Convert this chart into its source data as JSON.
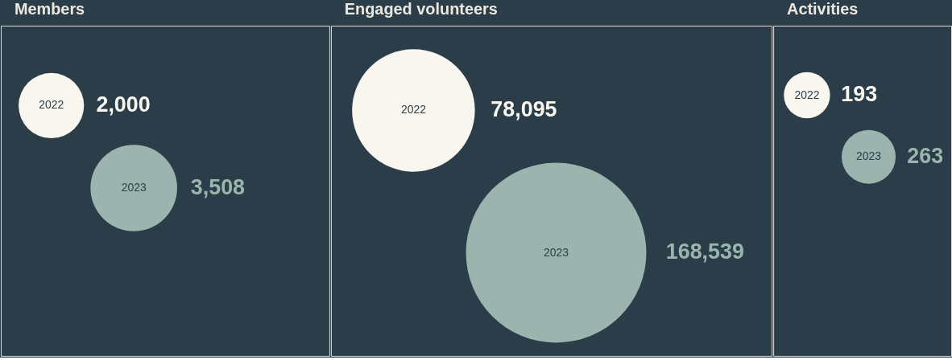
{
  "chart_data": [
    {
      "type": "other",
      "title": "Members",
      "categories": [
        "2022",
        "2023"
      ],
      "values": [
        2000,
        3508
      ],
      "value_labels": [
        "2,000",
        "3,508"
      ],
      "colors": [
        "#f9f6f0",
        "#9bb5ae"
      ]
    },
    {
      "type": "other",
      "title": "Engaged volunteers",
      "categories": [
        "2022",
        "2023"
      ],
      "values": [
        78095,
        168539
      ],
      "value_labels": [
        "78,095",
        "168,539"
      ],
      "colors": [
        "#f9f6f0",
        "#9bb5ae"
      ]
    },
    {
      "type": "other",
      "title": "Activities",
      "categories": [
        "2022",
        "2023"
      ],
      "values": [
        193,
        263
      ],
      "value_labels": [
        "193",
        "263"
      ],
      "colors": [
        "#f9f6f0",
        "#9bb5ae"
      ]
    }
  ]
}
